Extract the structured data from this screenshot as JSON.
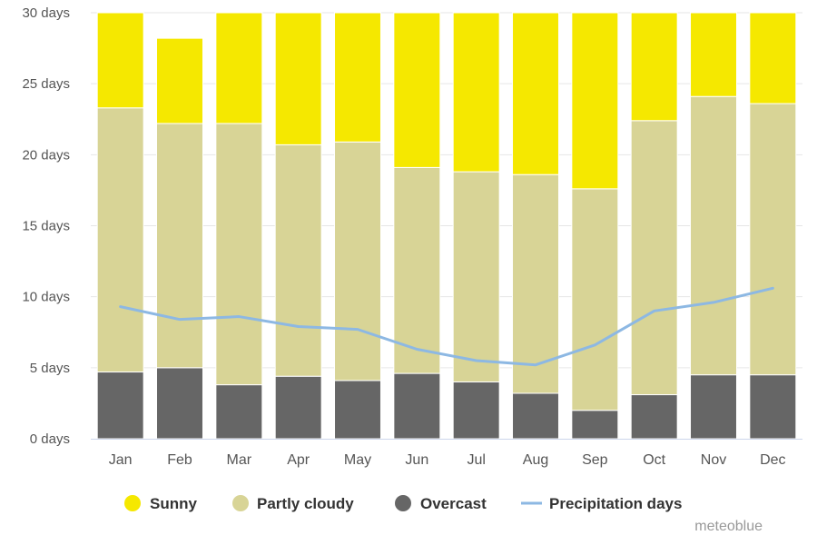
{
  "chart_data": {
    "type": "bar",
    "stacked": true,
    "categories": [
      "Jan",
      "Feb",
      "Mar",
      "Apr",
      "May",
      "Jun",
      "Jul",
      "Aug",
      "Sep",
      "Oct",
      "Nov",
      "Dec"
    ],
    "series": [
      {
        "name": "Overcast",
        "kind": "bar",
        "color": "#666666",
        "values": [
          4.7,
          5.0,
          3.8,
          4.4,
          4.1,
          4.6,
          4.0,
          3.2,
          2.0,
          3.1,
          4.5,
          4.5
        ]
      },
      {
        "name": "Partly cloudy",
        "kind": "bar",
        "color": "#d8d496",
        "values": [
          18.6,
          17.2,
          18.4,
          16.3,
          16.8,
          14.5,
          14.8,
          15.4,
          15.6,
          19.3,
          19.6,
          19.1
        ]
      },
      {
        "name": "Sunny",
        "kind": "bar",
        "color": "#f5e800",
        "values": [
          7.7,
          6.0,
          7.8,
          9.3,
          9.1,
          10.9,
          11.2,
          11.4,
          12.4,
          7.6,
          5.9,
          6.4
        ]
      },
      {
        "name": "Precipitation days",
        "kind": "line",
        "color": "#8db8e3",
        "values": [
          9.3,
          8.4,
          8.6,
          7.9,
          7.7,
          6.3,
          5.5,
          5.2,
          6.6,
          9.0,
          9.6,
          10.6
        ]
      }
    ],
    "legend_order": [
      "Sunny",
      "Partly cloudy",
      "Overcast",
      "Precipitation days"
    ],
    "yticks": [
      "0 days",
      "5 days",
      "10 days",
      "15 days",
      "20 days",
      "25 days",
      "30 days"
    ],
    "ylim": [
      0,
      30
    ],
    "grid": true,
    "legend_position": "bottom",
    "credit": "meteoblue"
  }
}
